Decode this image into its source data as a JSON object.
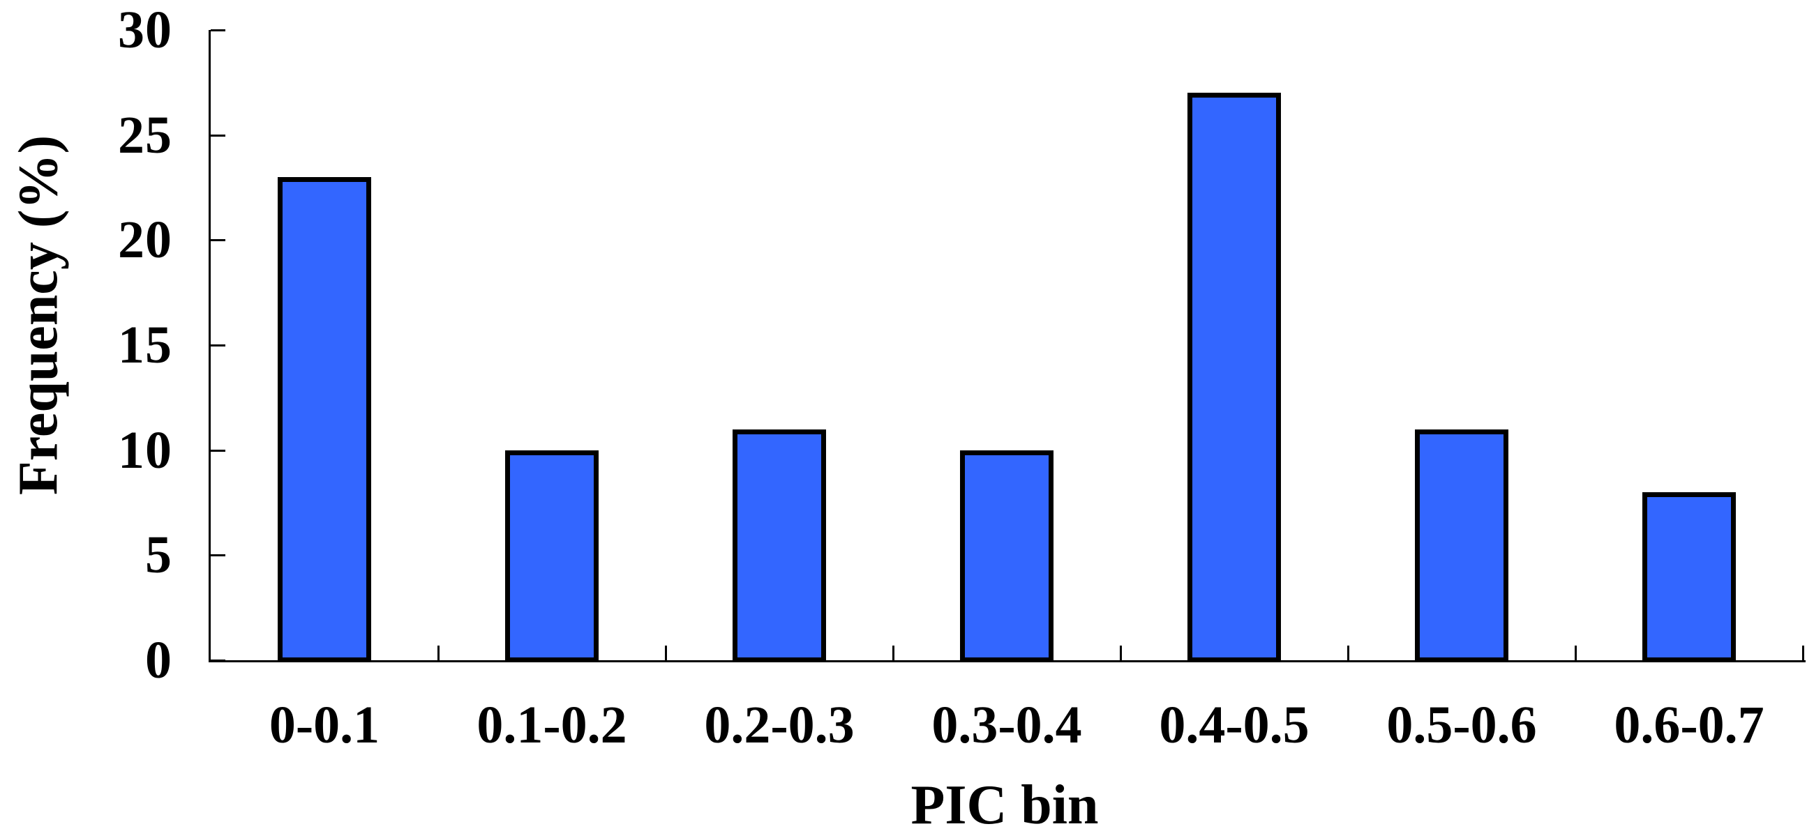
{
  "chart_data": {
    "type": "bar",
    "title": "",
    "xlabel": "PIC bin",
    "ylabel": "Frequency (%)",
    "categories": [
      "0-0.1",
      "0.1-0.2",
      "0.2-0.3",
      "0.3-0.4",
      "0.4-0.5",
      "0.5-0.6",
      "0.6-0.7"
    ],
    "values": [
      23,
      10,
      11,
      10,
      27,
      11,
      8
    ],
    "yticks": [
      0,
      5,
      10,
      15,
      20,
      25,
      30
    ],
    "ylim": [
      0,
      30
    ],
    "grid": false,
    "legend": "none",
    "tick_style": "inside",
    "bar_fill_color": "#3366FF",
    "bar_border_color": "#000000",
    "axis_color": "#000000",
    "text_color": "#000000",
    "background_color": "#FFFFFF"
  }
}
